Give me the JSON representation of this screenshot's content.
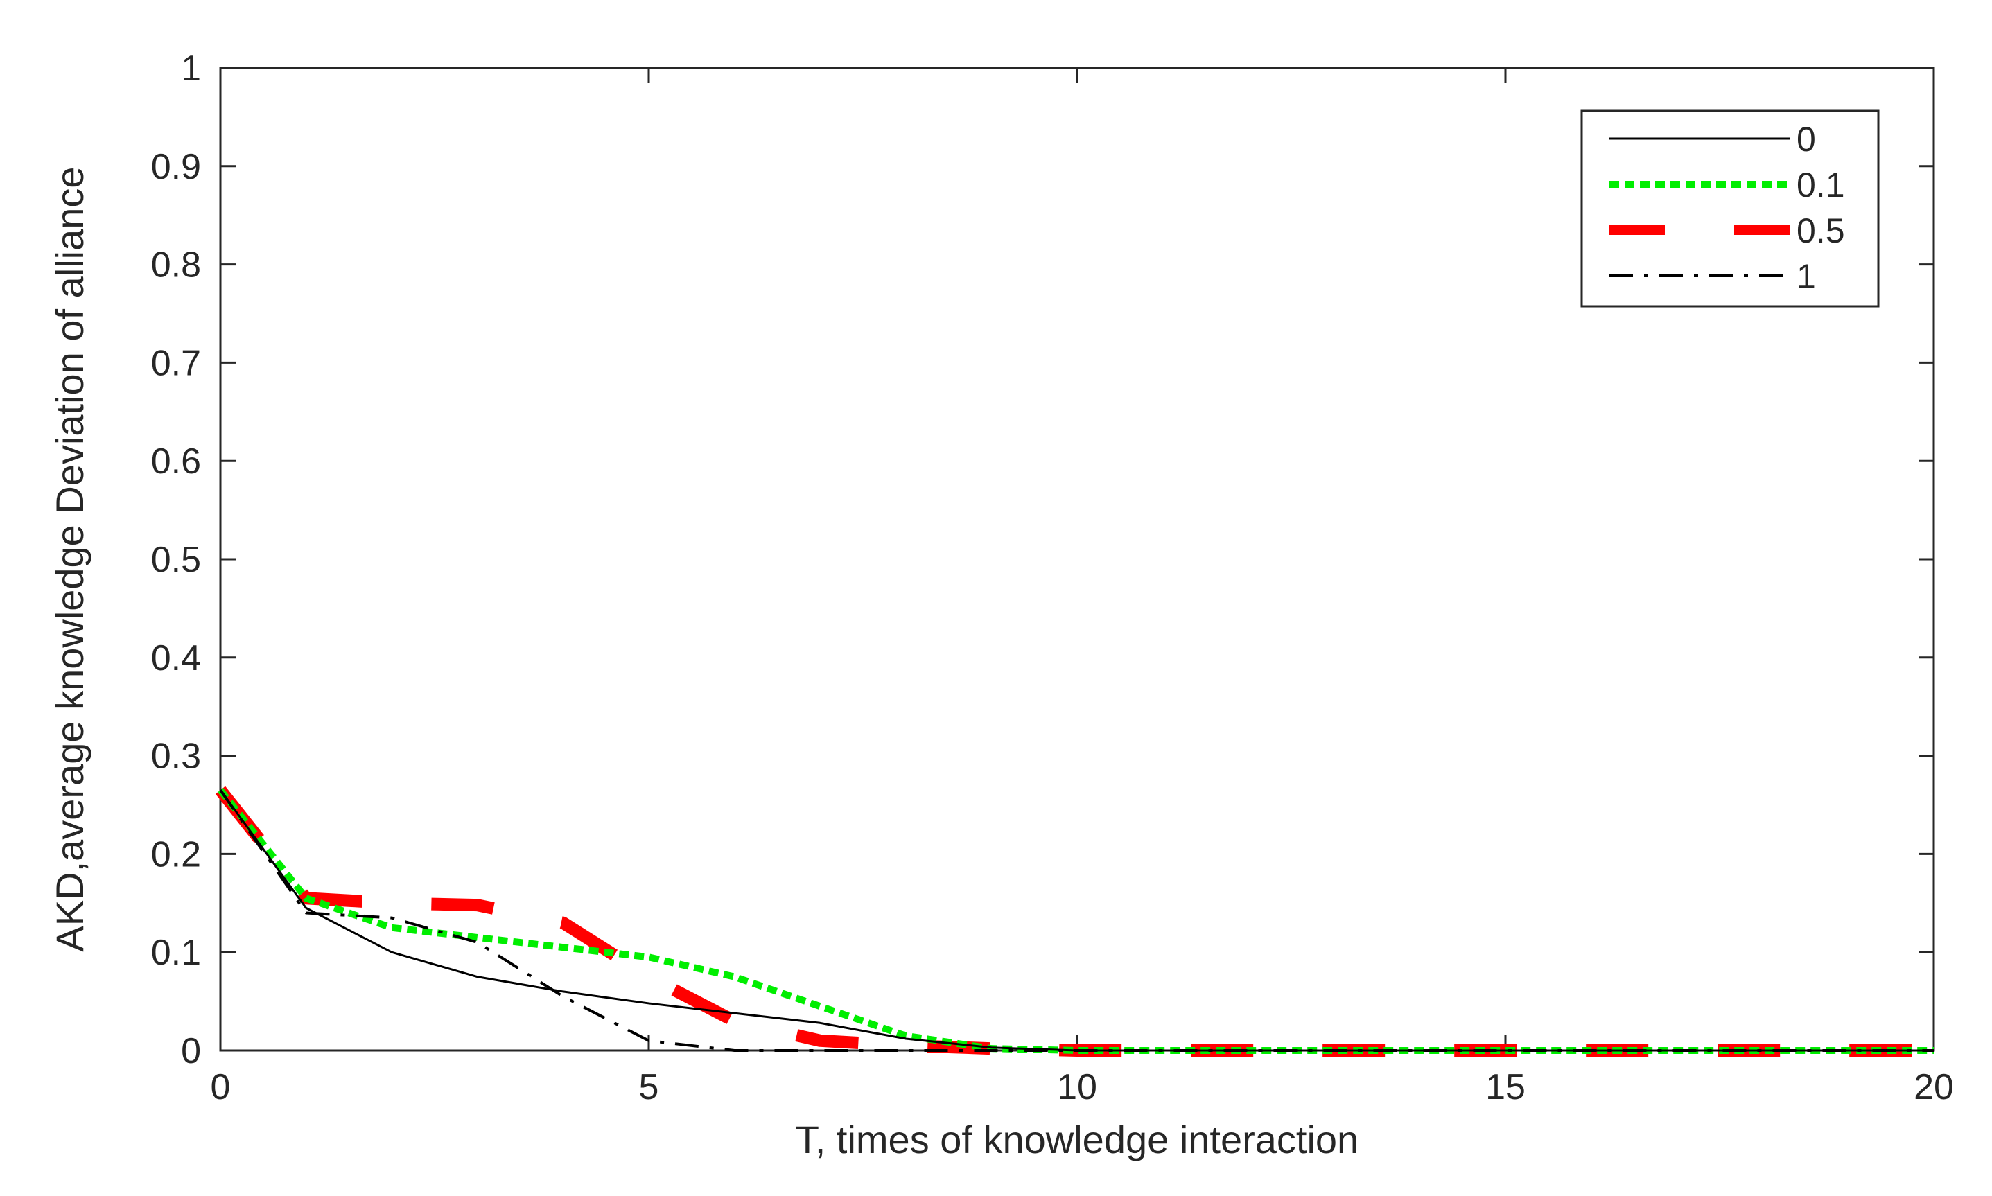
{
  "chart_data": {
    "type": "line",
    "title": "",
    "xlabel": "T, times of knowledge interaction",
    "ylabel": "AKD,average knowledge Deviation of alliance",
    "xlim": [
      0,
      20
    ],
    "ylim": [
      0,
      1
    ],
    "xticks": [
      "0",
      "5",
      "10",
      "15",
      "20"
    ],
    "yticks": [
      "0",
      "0.1",
      "0.2",
      "0.3",
      "0.4",
      "0.5",
      "0.6",
      "0.7",
      "0.8",
      "0.9",
      "1"
    ],
    "grid": false,
    "legend_position": "top-right",
    "x": [
      0,
      1,
      2,
      3,
      4,
      5,
      6,
      7,
      8,
      9,
      10,
      11,
      12,
      13,
      14,
      15,
      16,
      17,
      18,
      19,
      20
    ],
    "series": [
      {
        "name": "0",
        "color": "#000000",
        "style": "solid",
        "values": [
          0.265,
          0.145,
          0.1,
          0.075,
          0.06,
          0.048,
          0.038,
          0.028,
          0.012,
          0.003,
          0,
          0,
          0,
          0,
          0,
          0,
          0,
          0,
          0,
          0,
          0
        ]
      },
      {
        "name": "0.1",
        "color": "#00ee00",
        "style": "dotted",
        "values": [
          0.265,
          0.155,
          0.125,
          0.115,
          0.105,
          0.095,
          0.075,
          0.045,
          0.015,
          0.002,
          0,
          0,
          0,
          0,
          0,
          0,
          0,
          0,
          0,
          0,
          0
        ]
      },
      {
        "name": "0.5",
        "color": "#ff0000",
        "style": "dashed",
        "values": [
          0.265,
          0.155,
          0.15,
          0.148,
          0.13,
          0.075,
          0.03,
          0.01,
          0.005,
          0.002,
          0,
          0,
          0,
          0,
          0,
          0,
          0,
          0,
          0,
          0,
          0
        ]
      },
      {
        "name": "1",
        "color": "#000000",
        "style": "dashdot",
        "values": [
          0.265,
          0.14,
          0.135,
          0.11,
          0.055,
          0.01,
          0,
          0,
          0,
          0,
          0,
          0,
          0,
          0,
          0,
          0,
          0,
          0,
          0,
          0,
          0
        ]
      }
    ]
  }
}
